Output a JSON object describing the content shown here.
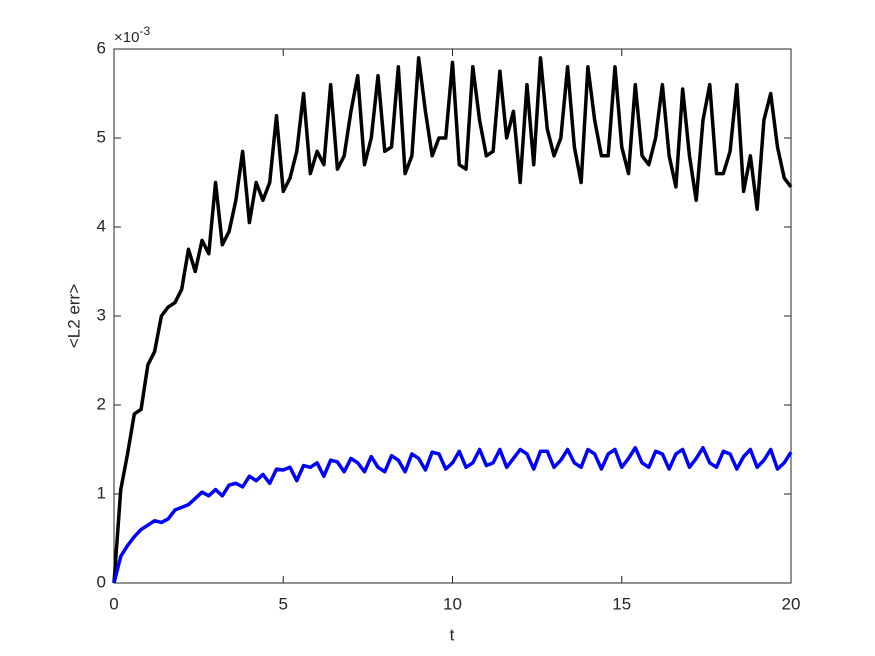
{
  "chart_data": {
    "type": "line",
    "xlabel": "t",
    "ylabel": "<L2 err>",
    "y_multiplier": {
      "base": "×10",
      "exponent": "-3"
    },
    "xlim": [
      0,
      20
    ],
    "xticks": [
      0,
      5,
      10,
      15,
      20
    ],
    "ylim": [
      0,
      6
    ],
    "yticks": [
      0,
      1,
      2,
      3,
      4,
      5,
      6
    ],
    "x": [
      0,
      0.2,
      0.4,
      0.6,
      0.8,
      1,
      1.2,
      1.4,
      1.6,
      1.8,
      2,
      2.2,
      2.4,
      2.6,
      2.8,
      3,
      3.2,
      3.4,
      3.6,
      3.8,
      4,
      4.2,
      4.4,
      4.6,
      4.8,
      5,
      5.2,
      5.4,
      5.6,
      5.8,
      6,
      6.2,
      6.4,
      6.6,
      6.8,
      7,
      7.2,
      7.4,
      7.6,
      7.8,
      8,
      8.2,
      8.4,
      8.6,
      8.8,
      9,
      9.2,
      9.4,
      9.6,
      9.8,
      10,
      10.2,
      10.4,
      10.6,
      10.8,
      11,
      11.2,
      11.4,
      11.6,
      11.8,
      12,
      12.2,
      12.4,
      12.6,
      12.8,
      13,
      13.2,
      13.4,
      13.6,
      13.8,
      14,
      14.2,
      14.4,
      14.6,
      14.8,
      15,
      15.2,
      15.4,
      15.6,
      15.8,
      16,
      16.2,
      16.4,
      16.6,
      16.8,
      17,
      17.2,
      17.4,
      17.6,
      17.8,
      18,
      18.2,
      18.4,
      18.6,
      18.8,
      19,
      19.2,
      19.4,
      19.6,
      19.8,
      20
    ],
    "series": [
      {
        "color": "#000000",
        "values": [
          0,
          1.05,
          1.45,
          1.9,
          1.95,
          2.45,
          2.6,
          3.0,
          3.1,
          3.15,
          3.3,
          3.75,
          3.5,
          3.85,
          3.7,
          4.5,
          3.8,
          3.95,
          4.3,
          4.85,
          4.05,
          4.5,
          4.3,
          4.5,
          5.25,
          4.4,
          4.55,
          4.85,
          5.5,
          4.6,
          4.85,
          4.7,
          5.6,
          4.65,
          4.8,
          5.3,
          5.7,
          4.7,
          5.0,
          5.7,
          4.85,
          4.9,
          5.8,
          4.6,
          4.8,
          5.9,
          5.3,
          4.8,
          5.0,
          5.0,
          5.85,
          4.7,
          4.65,
          5.8,
          5.2,
          4.8,
          4.85,
          5.75,
          5.0,
          5.3,
          4.5,
          5.6,
          4.7,
          5.9,
          5.1,
          4.8,
          5.0,
          5.8,
          4.9,
          4.5,
          5.8,
          5.2,
          4.8,
          4.8,
          5.8,
          4.9,
          4.6,
          5.6,
          4.8,
          4.7,
          5.0,
          5.6,
          4.8,
          4.45,
          5.55,
          4.8,
          4.3,
          5.2,
          5.6,
          4.6,
          4.6,
          4.85,
          5.6,
          4.4,
          4.8,
          4.2,
          5.2,
          5.5,
          4.9,
          4.55,
          4.45
        ]
      },
      {
        "color": "#0000ff",
        "values": [
          0,
          0.3,
          0.42,
          0.52,
          0.6,
          0.65,
          0.7,
          0.68,
          0.72,
          0.82,
          0.85,
          0.88,
          0.95,
          1.02,
          0.98,
          1.05,
          0.98,
          1.1,
          1.12,
          1.08,
          1.2,
          1.15,
          1.22,
          1.12,
          1.28,
          1.27,
          1.3,
          1.15,
          1.32,
          1.3,
          1.35,
          1.2,
          1.38,
          1.36,
          1.25,
          1.4,
          1.35,
          1.25,
          1.42,
          1.3,
          1.25,
          1.43,
          1.38,
          1.25,
          1.45,
          1.4,
          1.27,
          1.47,
          1.45,
          1.28,
          1.35,
          1.48,
          1.3,
          1.35,
          1.5,
          1.32,
          1.35,
          1.5,
          1.3,
          1.4,
          1.5,
          1.45,
          1.28,
          1.48,
          1.48,
          1.3,
          1.38,
          1.5,
          1.35,
          1.3,
          1.5,
          1.45,
          1.28,
          1.45,
          1.5,
          1.3,
          1.4,
          1.52,
          1.35,
          1.3,
          1.48,
          1.45,
          1.28,
          1.45,
          1.5,
          1.3,
          1.4,
          1.52,
          1.35,
          1.3,
          1.48,
          1.45,
          1.28,
          1.42,
          1.5,
          1.3,
          1.38,
          1.5,
          1.28,
          1.35,
          1.47
        ]
      }
    ]
  }
}
